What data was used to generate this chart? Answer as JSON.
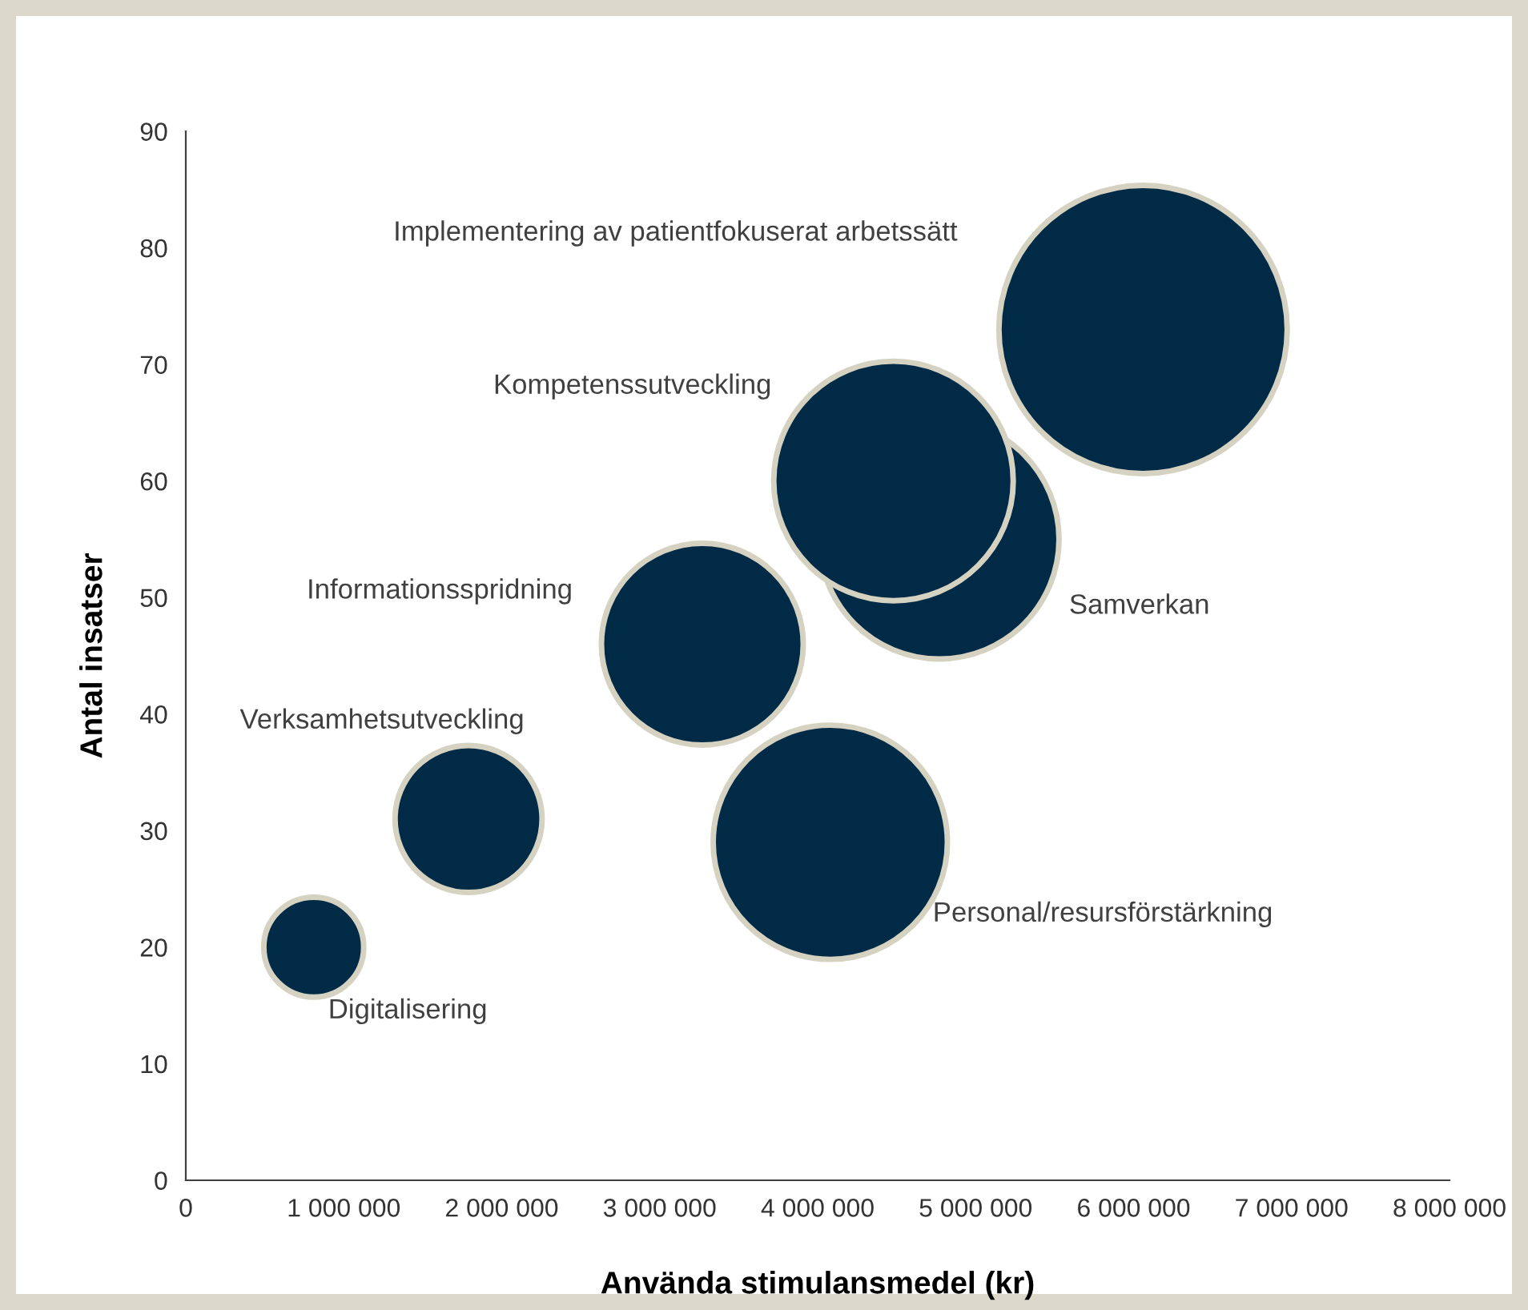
{
  "chart_data": {
    "type": "bubble",
    "xlabel": "Använda stimulansmedel (kr)",
    "ylabel": "Antal insatser",
    "series": [
      {
        "name": "Digitalisering",
        "color": "#002a45",
        "x": [
          810000
        ],
        "values": [
          20
        ],
        "sizes": [
          0.12
        ]
      },
      {
        "name": "Verksamhetsutveckling",
        "color": "#002a45",
        "x": [
          1790000
        ],
        "values": [
          31
        ],
        "sizes": [
          0.26
        ]
      },
      {
        "name": "Informationsspridning",
        "color": "#002a45",
        "x": [
          3270000
        ],
        "values": [
          46
        ],
        "sizes": [
          0.49
        ]
      },
      {
        "name": "Personal/resursförstärkning",
        "color": "#002a45",
        "x": [
          4080000
        ],
        "values": [
          29
        ],
        "sizes": [
          0.66
        ]
      },
      {
        "name": "Samverkan",
        "color": "#002a45",
        "x": [
          4770000
        ],
        "values": [
          55
        ],
        "sizes": [
          0.69
        ]
      },
      {
        "name": "Kompetenssutveckling",
        "color": "#002a45",
        "x": [
          4480000
        ],
        "values": [
          60
        ],
        "sizes": [
          0.69
        ]
      },
      {
        "name": "Implementering av patientfokuserat arbetssätt",
        "color": "#002a45",
        "x": [
          6060000
        ],
        "values": [
          73
        ],
        "sizes": [
          1
        ]
      }
    ],
    "xlim": [
      0,
      8000000
    ],
    "xticks": [
      0,
      {
        "value": 1000000,
        "label": "1 000 000"
      },
      {
        "value": 2000000,
        "label": "2 000 000"
      },
      {
        "value": 3000000,
        "label": "3 000 000"
      },
      {
        "value": 4000000,
        "label": "4 000 000"
      },
      {
        "value": 5000000,
        "label": "5 000 000"
      },
      {
        "value": 6000000,
        "label": "6 000 000"
      },
      {
        "value": 7000000,
        "label": "7 000 000"
      },
      {
        "value": 8000000,
        "label": "8 000 000"
      }
    ],
    "ylim": [
      0,
      90
    ],
    "yticks": [
      0,
      10,
      20,
      30,
      40,
      50,
      60,
      70,
      80,
      90
    ],
    "grid": false,
    "legend": false
  }
}
